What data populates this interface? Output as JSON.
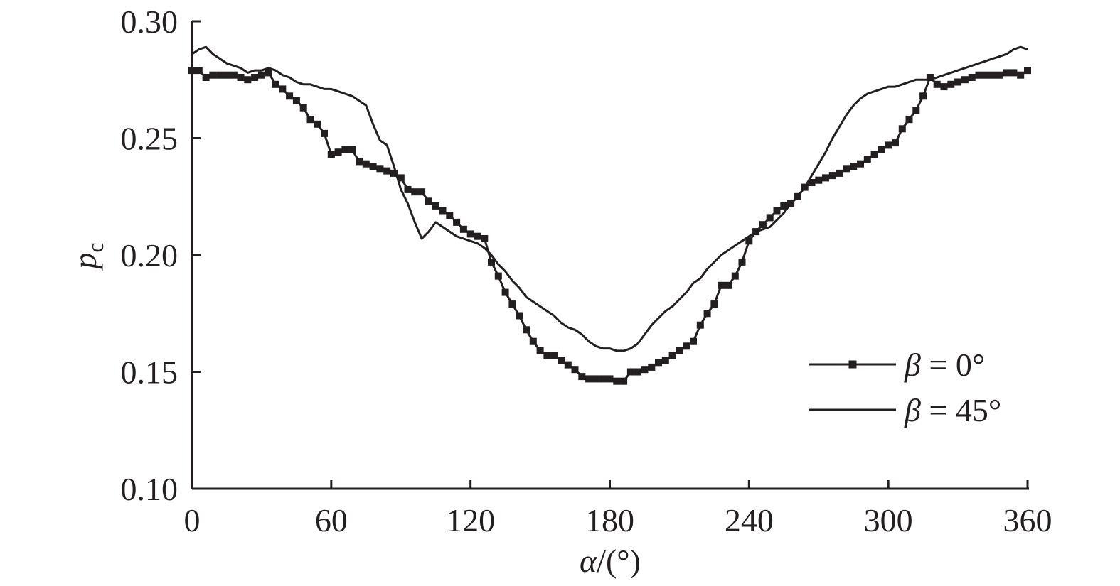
{
  "chart_data": {
    "type": "line",
    "title": "",
    "xlabel": {
      "symbol": "α",
      "unit": "/(°)"
    },
    "ylabel": {
      "symbol": "p",
      "subscript": "c"
    },
    "xlim": [
      0,
      360
    ],
    "ylim": [
      0.1,
      0.3
    ],
    "x_ticks": [
      "0",
      "60",
      "120",
      "180",
      "240",
      "300",
      "360"
    ],
    "y_ticks": [
      "0.10",
      "0.15",
      "0.20",
      "0.25",
      "0.30"
    ],
    "grid": false,
    "legend_position": "right",
    "line_color": "#231f20",
    "series": [
      {
        "name": "β = 0°",
        "legend_parts": {
          "symbol": "β",
          "rest": " = 0°"
        },
        "marker": "square",
        "x": [
          0,
          3,
          6,
          9,
          12,
          15,
          18,
          21,
          24,
          27,
          30,
          33,
          36,
          39,
          42,
          45,
          48,
          51,
          54,
          57,
          60,
          63,
          66,
          69,
          72,
          75,
          78,
          81,
          84,
          87,
          90,
          93,
          96,
          99,
          102,
          105,
          108,
          111,
          114,
          117,
          120,
          123,
          126,
          129,
          132,
          135,
          138,
          141,
          144,
          147,
          150,
          153,
          156,
          159,
          162,
          165,
          168,
          171,
          174,
          177,
          180,
          183,
          186,
          189,
          192,
          195,
          198,
          201,
          204,
          207,
          210,
          213,
          216,
          219,
          222,
          225,
          228,
          231,
          234,
          237,
          240,
          243,
          246,
          249,
          252,
          255,
          258,
          261,
          264,
          267,
          270,
          273,
          276,
          279,
          282,
          285,
          288,
          291,
          294,
          297,
          300,
          303,
          306,
          309,
          312,
          315,
          318,
          321,
          324,
          327,
          330,
          333,
          336,
          339,
          342,
          345,
          348,
          351,
          354,
          357,
          360
        ],
        "values": [
          0.279,
          0.279,
          0.276,
          0.277,
          0.277,
          0.277,
          0.277,
          0.276,
          0.275,
          0.276,
          0.277,
          0.278,
          0.273,
          0.271,
          0.268,
          0.266,
          0.263,
          0.258,
          0.256,
          0.252,
          0.243,
          0.244,
          0.245,
          0.245,
          0.24,
          0.239,
          0.238,
          0.237,
          0.236,
          0.235,
          0.233,
          0.228,
          0.227,
          0.227,
          0.223,
          0.221,
          0.219,
          0.217,
          0.214,
          0.211,
          0.209,
          0.208,
          0.207,
          0.197,
          0.191,
          0.184,
          0.179,
          0.174,
          0.168,
          0.163,
          0.159,
          0.157,
          0.157,
          0.155,
          0.153,
          0.151,
          0.148,
          0.147,
          0.147,
          0.147,
          0.147,
          0.146,
          0.146,
          0.15,
          0.15,
          0.151,
          0.152,
          0.154,
          0.155,
          0.157,
          0.159,
          0.161,
          0.163,
          0.17,
          0.175,
          0.179,
          0.187,
          0.187,
          0.191,
          0.197,
          0.206,
          0.21,
          0.213,
          0.216,
          0.219,
          0.221,
          0.222,
          0.225,
          0.229,
          0.231,
          0.232,
          0.233,
          0.234,
          0.235,
          0.237,
          0.238,
          0.239,
          0.241,
          0.243,
          0.245,
          0.247,
          0.248,
          0.254,
          0.258,
          0.262,
          0.268,
          0.276,
          0.273,
          0.272,
          0.273,
          0.274,
          0.275,
          0.276,
          0.277,
          0.277,
          0.277,
          0.277,
          0.278,
          0.278,
          0.277,
          0.279
        ]
      },
      {
        "name": "β = 45°",
        "legend_parts": {
          "symbol": "β",
          "rest": " = 45°"
        },
        "marker": "none",
        "x": [
          0,
          3,
          6,
          9,
          12,
          15,
          18,
          21,
          24,
          27,
          30,
          33,
          36,
          39,
          42,
          45,
          48,
          51,
          54,
          57,
          60,
          63,
          66,
          69,
          72,
          75,
          78,
          81,
          84,
          87,
          90,
          93,
          96,
          99,
          102,
          105,
          108,
          111,
          114,
          117,
          120,
          123,
          126,
          129,
          132,
          135,
          138,
          141,
          144,
          147,
          150,
          153,
          156,
          159,
          162,
          165,
          168,
          171,
          174,
          177,
          180,
          183,
          186,
          189,
          192,
          195,
          198,
          201,
          204,
          207,
          210,
          213,
          216,
          219,
          222,
          225,
          228,
          231,
          234,
          237,
          240,
          243,
          246,
          249,
          252,
          255,
          258,
          261,
          264,
          267,
          270,
          273,
          276,
          279,
          282,
          285,
          288,
          291,
          294,
          297,
          300,
          303,
          306,
          309,
          312,
          315,
          318,
          321,
          324,
          327,
          330,
          333,
          336,
          339,
          342,
          345,
          348,
          351,
          354,
          357,
          360
        ],
        "values": [
          0.286,
          0.288,
          0.289,
          0.286,
          0.284,
          0.282,
          0.281,
          0.28,
          0.278,
          0.279,
          0.279,
          0.28,
          0.279,
          0.277,
          0.276,
          0.274,
          0.273,
          0.273,
          0.272,
          0.271,
          0.271,
          0.27,
          0.269,
          0.268,
          0.266,
          0.264,
          0.256,
          0.249,
          0.247,
          0.238,
          0.228,
          0.222,
          0.214,
          0.207,
          0.21,
          0.214,
          0.212,
          0.21,
          0.208,
          0.207,
          0.206,
          0.205,
          0.203,
          0.2,
          0.196,
          0.193,
          0.189,
          0.186,
          0.182,
          0.18,
          0.178,
          0.176,
          0.174,
          0.171,
          0.169,
          0.168,
          0.166,
          0.163,
          0.161,
          0.16,
          0.16,
          0.159,
          0.159,
          0.16,
          0.162,
          0.166,
          0.17,
          0.173,
          0.176,
          0.178,
          0.181,
          0.184,
          0.188,
          0.19,
          0.194,
          0.197,
          0.2,
          0.202,
          0.204,
          0.206,
          0.208,
          0.21,
          0.211,
          0.212,
          0.215,
          0.218,
          0.222,
          0.225,
          0.229,
          0.234,
          0.239,
          0.244,
          0.25,
          0.255,
          0.26,
          0.264,
          0.267,
          0.269,
          0.27,
          0.271,
          0.272,
          0.272,
          0.273,
          0.274,
          0.275,
          0.275,
          0.275,
          0.276,
          0.277,
          0.278,
          0.279,
          0.28,
          0.281,
          0.282,
          0.283,
          0.284,
          0.285,
          0.286,
          0.288,
          0.289,
          0.288
        ]
      }
    ]
  }
}
